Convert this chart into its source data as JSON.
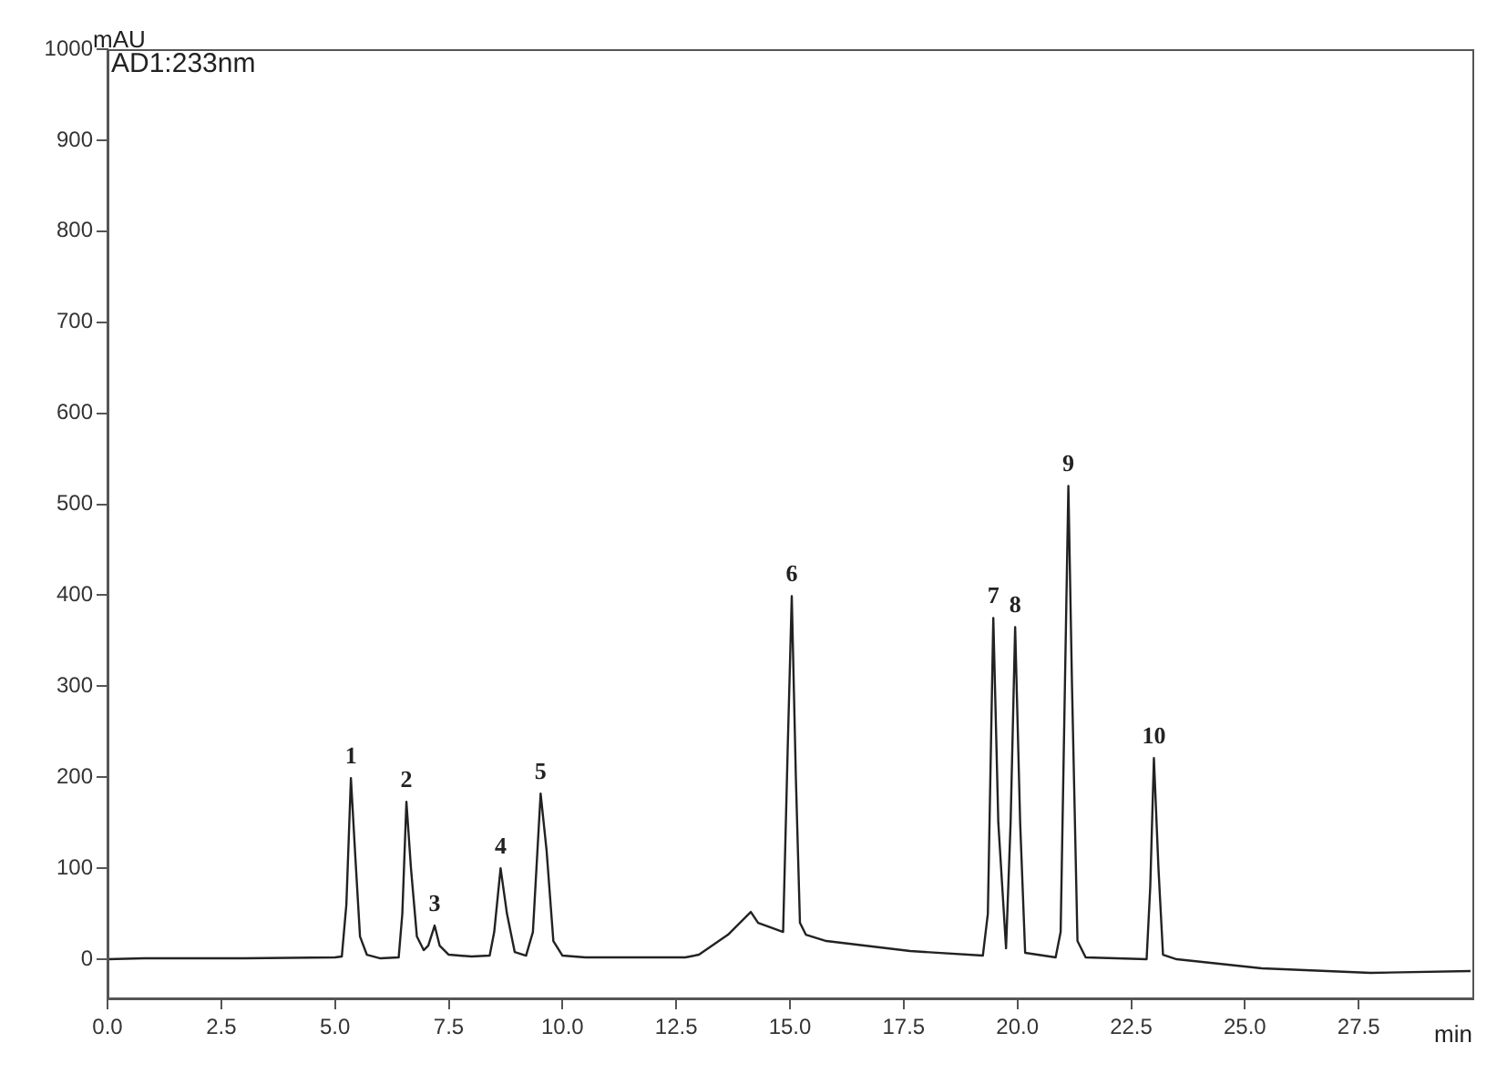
{
  "chart_data": {
    "type": "line",
    "ylabel": "mAU",
    "xlabel": "min",
    "annotations": [
      "AD1:233nm",
      {
        "text": "1",
        "x": 5.35,
        "y": 199
      },
      {
        "text": "2",
        "x": 6.57,
        "y": 173
      },
      {
        "text": "3",
        "x": 7.19,
        "y": 37
      },
      {
        "text": "4",
        "x": 8.64,
        "y": 100
      },
      {
        "text": "5",
        "x": 9.52,
        "y": 182
      },
      {
        "text": "6",
        "x": 15.04,
        "y": 399
      },
      {
        "text": "7",
        "x": 19.47,
        "y": 375
      },
      {
        "text": "8",
        "x": 19.95,
        "y": 365
      },
      {
        "text": "9",
        "x": 21.12,
        "y": 520
      },
      {
        "text": "10",
        "x": 23.0,
        "y": 221
      }
    ],
    "x": [
      0,
      0.8,
      3.0,
      5.0,
      5.15,
      5.25,
      5.35,
      5.45,
      5.55,
      5.7,
      6.0,
      6.4,
      6.48,
      6.57,
      6.67,
      6.8,
      6.95,
      7.05,
      7.19,
      7.3,
      7.5,
      8.0,
      8.4,
      8.5,
      8.64,
      8.78,
      8.95,
      9.2,
      9.35,
      9.52,
      9.65,
      9.8,
      10.0,
      10.5,
      12.7,
      13.0,
      13.64,
      14.14,
      14.3,
      14.85,
      14.95,
      15.04,
      15.13,
      15.22,
      15.35,
      15.8,
      17.64,
      19.24,
      19.35,
      19.47,
      19.58,
      19.75,
      19.85,
      19.95,
      20.06,
      20.17,
      20.84,
      20.95,
      21.12,
      21.2,
      21.32,
      21.5,
      22.84,
      22.92,
      23.0,
      23.1,
      23.2,
      23.5,
      25.37,
      27.76,
      29.96
    ],
    "series": [
      {
        "color": "#222222",
        "values": [
          0,
          1,
          1,
          2,
          3,
          60,
          199,
          110,
          25,
          5,
          1,
          2,
          50,
          173,
          100,
          25,
          10,
          15,
          37,
          15,
          5,
          3,
          4,
          30,
          100,
          50,
          8,
          4,
          30,
          182,
          120,
          20,
          4,
          2,
          2,
          5,
          27,
          52,
          40,
          30,
          230,
          399,
          200,
          40,
          27,
          20,
          9,
          4,
          50,
          375,
          150,
          12,
          150,
          365,
          150,
          7,
          2,
          30,
          520,
          300,
          20,
          2,
          0,
          80,
          221,
          100,
          5,
          0,
          -10,
          -15,
          -13
        ]
      }
    ],
    "xlim": [
      0,
      30
    ],
    "ylim": [
      -43,
      1000
    ],
    "xticks": [
      {
        "value": 0,
        "label": "0.0"
      },
      2.5,
      {
        "value": 5,
        "label": "5.0"
      },
      7.5,
      {
        "value": 10,
        "label": "10.0"
      },
      12.5,
      {
        "value": 15,
        "label": "15.0"
      },
      17.5,
      {
        "value": 20,
        "label": "20.0"
      },
      22.5,
      {
        "value": 25,
        "label": "25.0"
      },
      27.5
    ],
    "yticks": [
      0,
      100,
      200,
      300,
      400,
      500,
      600,
      700,
      800,
      900,
      1000
    ],
    "grid": false,
    "legend": false,
    "marker": "none",
    "line_style": "solid"
  }
}
